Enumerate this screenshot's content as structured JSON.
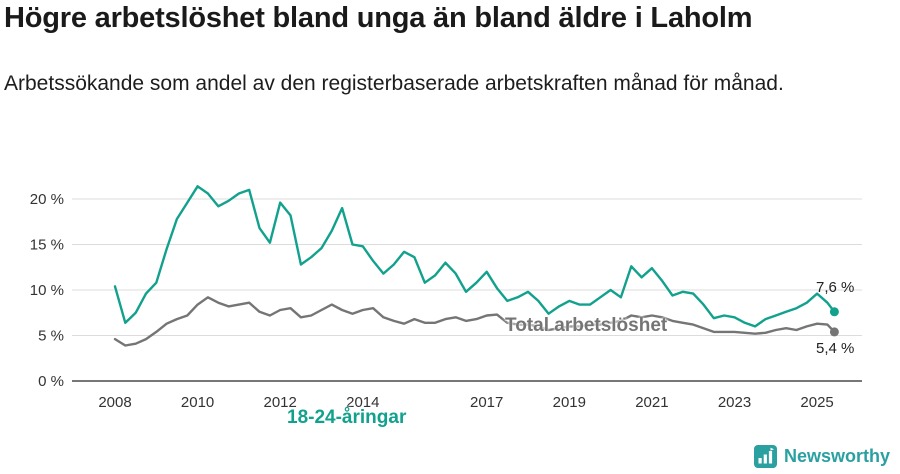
{
  "header": {
    "title": "Högre arbetslöshet bland unga än bland äldre i Laholm",
    "subtitle": "Arbetssökande som andel av den registerbaserade arbetskraften månad för månad."
  },
  "chart_data": {
    "type": "line",
    "title": "Högre arbetslöshet bland unga än bland äldre i Laholm",
    "subtitle": "Arbetssökande som andel av den registerbaserade arbetskraften månad för månad.",
    "unit": "%",
    "ylim": [
      0,
      22.5
    ],
    "grid": "horizontal",
    "legend_position": "inline-annotations",
    "y_ticks": [
      0,
      5,
      10,
      15,
      20
    ],
    "y_tick_labels": [
      "0 %",
      "5 %",
      "10 %",
      "15 %",
      "20 %"
    ],
    "x_ticks": [
      2008,
      2010,
      2012,
      2014,
      2017,
      2019,
      2021,
      2023,
      2025
    ],
    "x_tick_labels": [
      "2008",
      "2010",
      "2012",
      "2014",
      "2017",
      "2019",
      "2021",
      "2023",
      "2025"
    ],
    "x": [
      2008,
      2008.25,
      2008.5,
      2008.75,
      2009,
      2009.25,
      2009.5,
      2009.75,
      2010,
      2010.25,
      2010.5,
      2010.75,
      2011,
      2011.25,
      2011.5,
      2011.75,
      2012,
      2012.25,
      2012.5,
      2012.75,
      2013,
      2013.25,
      2013.5,
      2013.75,
      2014,
      2014.25,
      2014.5,
      2014.75,
      2015,
      2015.25,
      2015.5,
      2015.75,
      2016,
      2016.25,
      2016.5,
      2016.75,
      2017,
      2017.25,
      2017.5,
      2017.75,
      2018,
      2018.25,
      2018.5,
      2018.75,
      2019,
      2019.25,
      2019.5,
      2019.75,
      2020,
      2020.25,
      2020.5,
      2020.75,
      2021,
      2021.25,
      2021.5,
      2021.75,
      2022,
      2022.25,
      2022.5,
      2022.75,
      2023,
      2023.25,
      2023.5,
      2023.75,
      2024,
      2024.25,
      2024.5,
      2024.75,
      2025,
      2025.25,
      2025.42
    ],
    "series": [
      {
        "name": "18-24-åringar",
        "color": "#12a18d",
        "end_label": "7,6 %",
        "end_value": 7.6,
        "values": [
          10.4,
          6.4,
          7.5,
          9.6,
          10.8,
          14.5,
          17.8,
          19.6,
          21.4,
          20.6,
          19.2,
          19.8,
          20.6,
          21.0,
          16.8,
          15.2,
          19.6,
          18.2,
          12.8,
          13.6,
          14.6,
          16.5,
          19.0,
          15.0,
          14.8,
          13.2,
          11.8,
          12.8,
          14.2,
          13.6,
          10.8,
          11.6,
          13.0,
          11.8,
          9.8,
          10.8,
          12.0,
          10.2,
          8.8,
          9.2,
          9.8,
          8.8,
          7.4,
          8.2,
          8.8,
          8.4,
          8.4,
          9.2,
          10.0,
          9.2,
          12.6,
          11.4,
          12.4,
          11.0,
          9.4,
          9.8,
          9.6,
          8.4,
          6.9,
          7.2,
          7.0,
          6.4,
          6.0,
          6.8,
          7.2,
          7.6,
          8.0,
          8.6,
          9.6,
          8.6,
          7.6
        ]
      },
      {
        "name": "Total arbetslöshet",
        "color": "#757575",
        "end_label": "5,4 %",
        "end_value": 5.4,
        "values": [
          4.6,
          3.9,
          4.1,
          4.6,
          5.4,
          6.3,
          6.8,
          7.2,
          8.4,
          9.2,
          8.6,
          8.2,
          8.4,
          8.6,
          7.6,
          7.2,
          7.8,
          8.0,
          7.0,
          7.2,
          7.8,
          8.4,
          7.8,
          7.4,
          7.8,
          8.0,
          7.0,
          6.6,
          6.3,
          6.8,
          6.4,
          6.4,
          6.8,
          7.0,
          6.6,
          6.8,
          7.2,
          7.3,
          6.4,
          6.2,
          6.2,
          6.0,
          5.6,
          5.8,
          6.0,
          6.0,
          6.2,
          6.2,
          6.4,
          6.6,
          7.2,
          7.0,
          7.2,
          7.0,
          6.6,
          6.4,
          6.2,
          5.8,
          5.4,
          5.4,
          5.4,
          5.3,
          5.2,
          5.3,
          5.6,
          5.8,
          5.6,
          6.0,
          6.3,
          6.2,
          5.4
        ]
      }
    ],
    "colors": {
      "grid": "#dcdcdc",
      "baseline": "#4a4a4a",
      "tick_text": "#333333"
    }
  },
  "footer": {
    "brand": "Newsworthy",
    "brand_color": "#2aa0a0"
  }
}
